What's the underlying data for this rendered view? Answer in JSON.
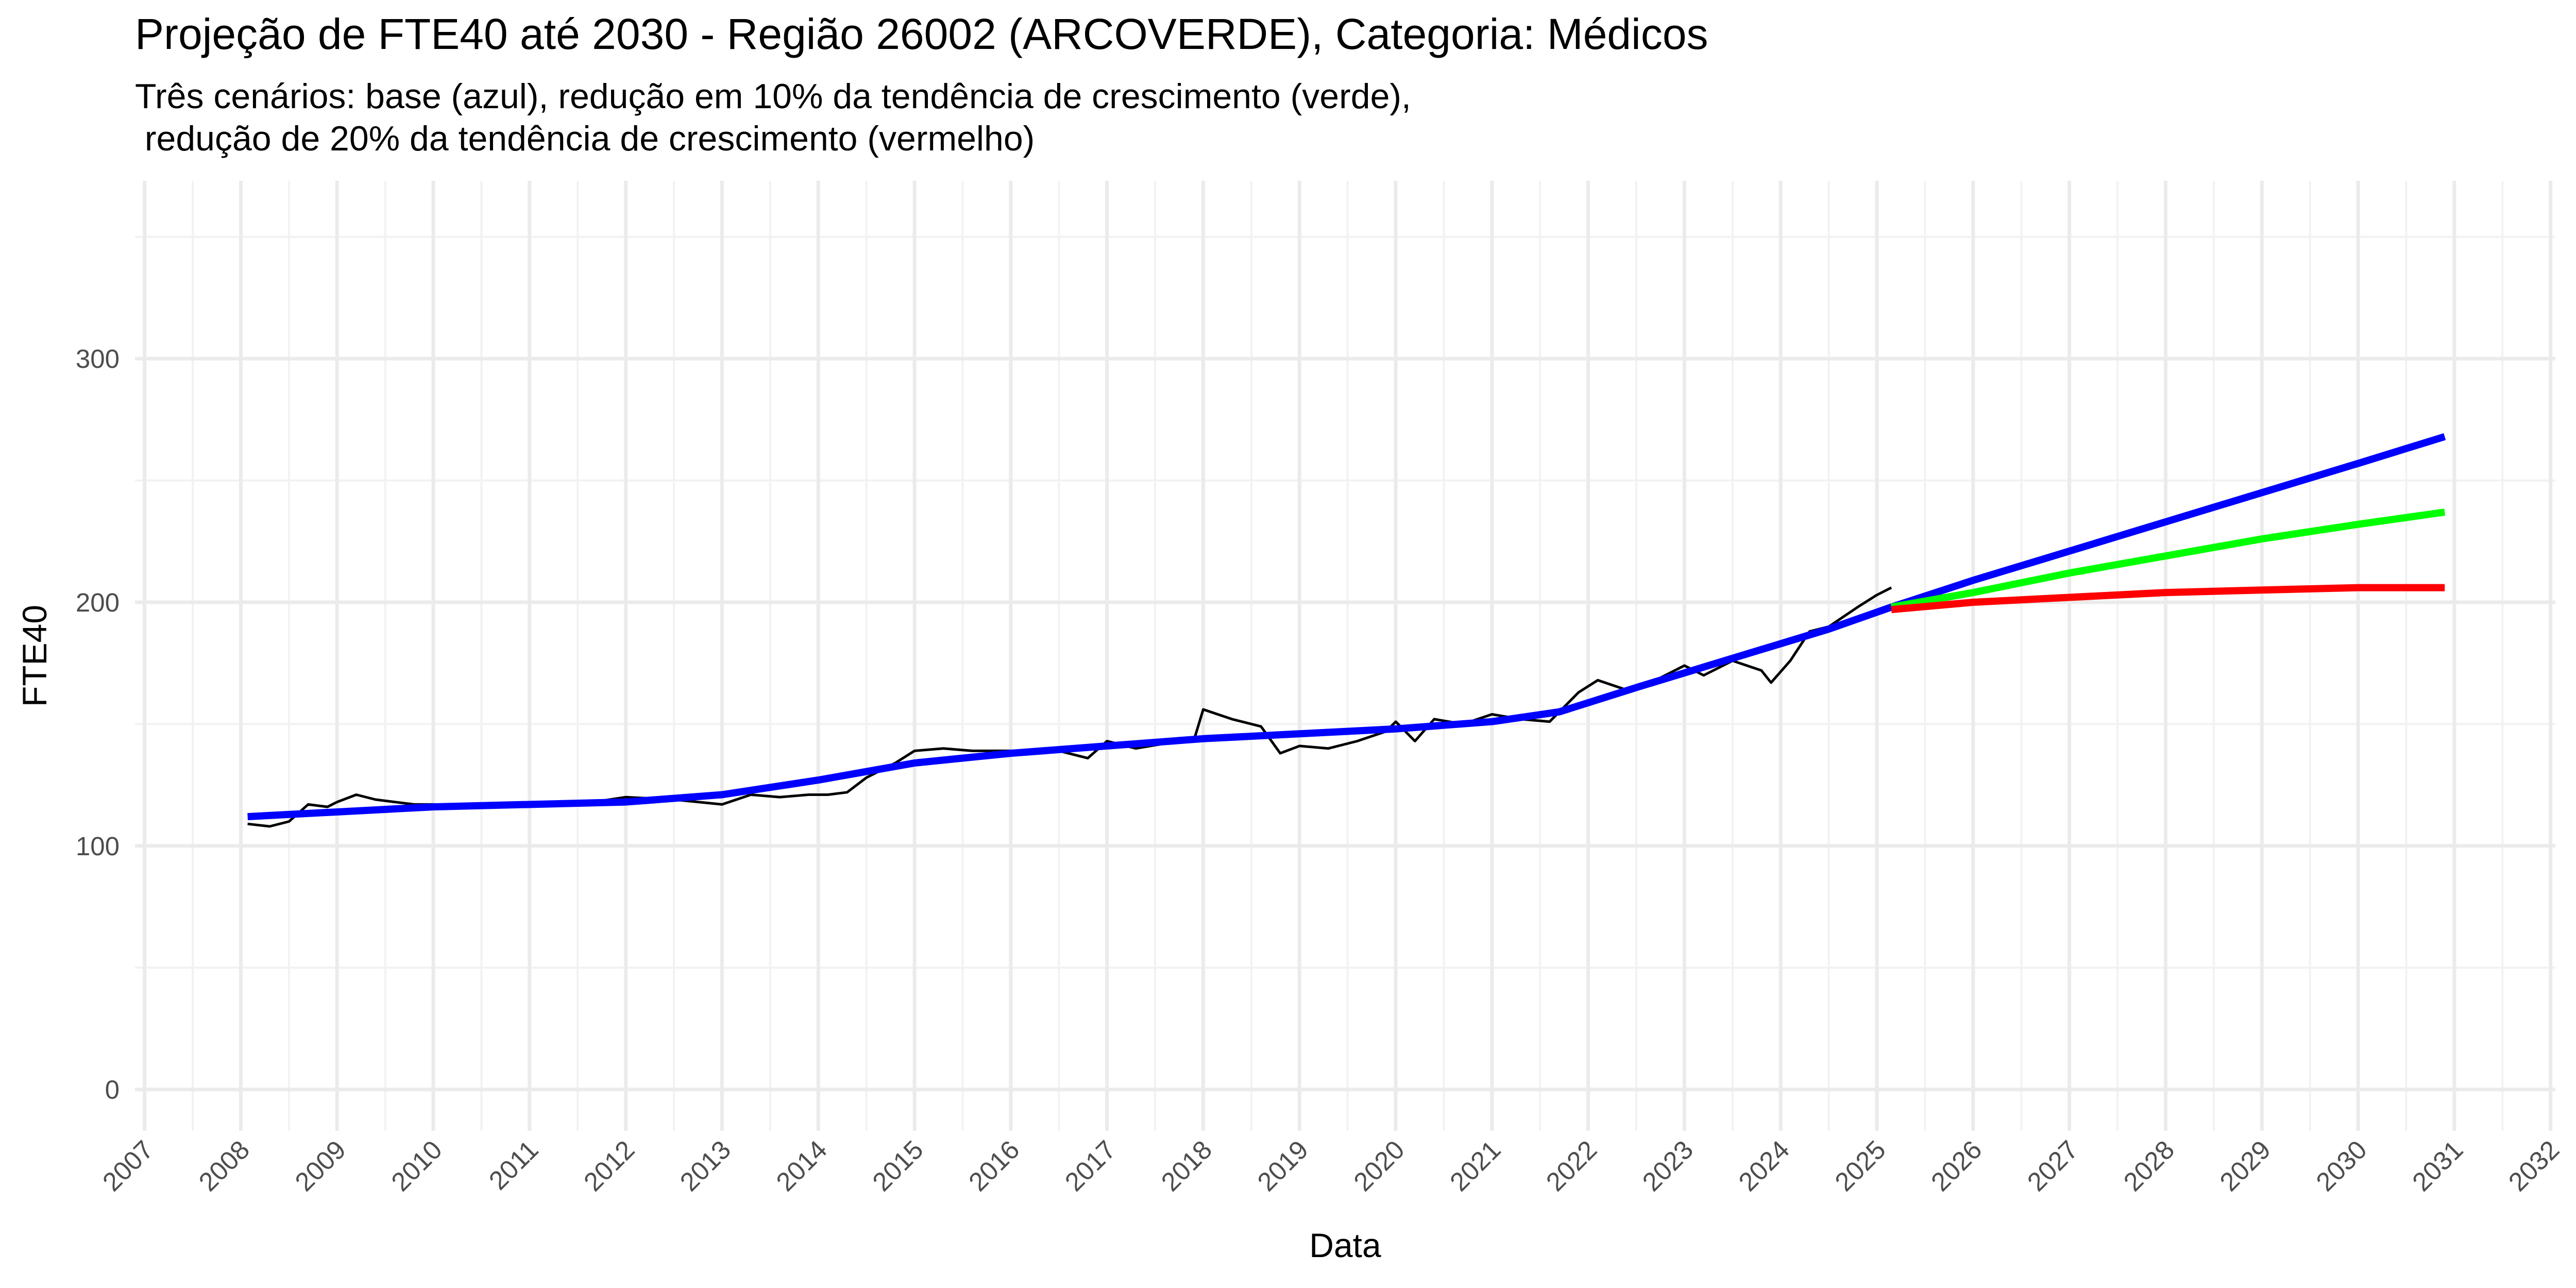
{
  "chart_data": {
    "type": "line",
    "title": "Projeção de FTE40 até 2030 - Região 26002 (ARCOVERDE), Categoria: Médicos",
    "subtitle": [
      "Três cenários: base (azul), redução em 10% da tendência de crescimento (verde),",
      " redução de 20% da tendência de crescimento (vermelho)"
    ],
    "x_label": "Data",
    "y_label": "FTE40",
    "xlim": [
      2006.9,
      2032.05
    ],
    "ylim": [
      -17,
      373
    ],
    "xticks": [
      2007,
      2008,
      2009,
      2010,
      2011,
      2012,
      2013,
      2014,
      2015,
      2016,
      2017,
      2018,
      2019,
      2020,
      2021,
      2022,
      2023,
      2024,
      2025,
      2026,
      2027,
      2028,
      2029,
      2030,
      2031,
      2032
    ],
    "yticks": [
      0,
      100,
      200,
      300
    ],
    "grid": true,
    "series": [
      {
        "color": "#000000",
        "width": 5,
        "x": [
          2008.07,
          2008.3,
          2008.5,
          2008.7,
          2008.9,
          2009.0,
          2009.2,
          2009.4,
          2009.6,
          2009.8,
          2010.0,
          2010.5,
          2011.0,
          2011.5,
          2012.0,
          2012.5,
          2013.0,
          2013.3,
          2013.6,
          2013.9,
          2014.1,
          2014.3,
          2014.5,
          2014.8,
          2015.0,
          2015.3,
          2015.6,
          2016.0,
          2016.5,
          2016.8,
          2017.0,
          2017.3,
          2017.6,
          2017.9,
          2018.0,
          2018.3,
          2018.6,
          2018.8,
          2019.0,
          2019.3,
          2019.6,
          2019.9,
          2020.0,
          2020.2,
          2020.4,
          2020.7,
          2021.0,
          2021.3,
          2021.6,
          2021.9,
          2022.1,
          2022.4,
          2022.7,
          2023.0,
          2023.2,
          2023.5,
          2023.8,
          2023.9,
          2024.1,
          2024.3,
          2024.5,
          2024.8,
          2025.0,
          2025.15
        ],
        "values": [
          109,
          108,
          110,
          117,
          116,
          118,
          121,
          119,
          118,
          117,
          117,
          116,
          117,
          117,
          120,
          119,
          117,
          121,
          120,
          121,
          121,
          122,
          128,
          134,
          139,
          140,
          139,
          139,
          139,
          136,
          143,
          140,
          142,
          143,
          156,
          152,
          149,
          138,
          141,
          140,
          143,
          147,
          151,
          143,
          152,
          150,
          154,
          152,
          151,
          163,
          168,
          164,
          168,
          174,
          170,
          176,
          172,
          167,
          176,
          188,
          190,
          198,
          203,
          206
        ]
      },
      {
        "color": "#0000ff",
        "width": 14,
        "x": [
          2008.07,
          2010,
          2012,
          2013,
          2014,
          2015,
          2016,
          2017,
          2018,
          2019,
          2020,
          2021,
          2021.7,
          2022.5,
          2023.5,
          2024.5,
          2025.15,
          2026,
          2027,
          2028,
          2029,
          2030,
          2030.9
        ],
        "values": [
          112,
          116,
          118,
          121,
          127,
          134,
          138,
          141,
          144,
          146,
          148,
          151,
          155,
          165,
          177,
          189,
          198,
          209,
          221,
          233,
          245,
          257,
          268
        ]
      },
      {
        "color": "#00ff00",
        "width": 14,
        "x": [
          2025.15,
          2026,
          2027,
          2028,
          2029,
          2030,
          2030.9
        ],
        "values": [
          198,
          204,
          212,
          219,
          226,
          232,
          237
        ]
      },
      {
        "color": "#ff0000",
        "width": 14,
        "x": [
          2025.15,
          2026,
          2027,
          2028,
          2029,
          2030,
          2030.9
        ],
        "values": [
          197,
          200,
          202,
          204,
          205,
          206,
          206
        ]
      }
    ]
  }
}
